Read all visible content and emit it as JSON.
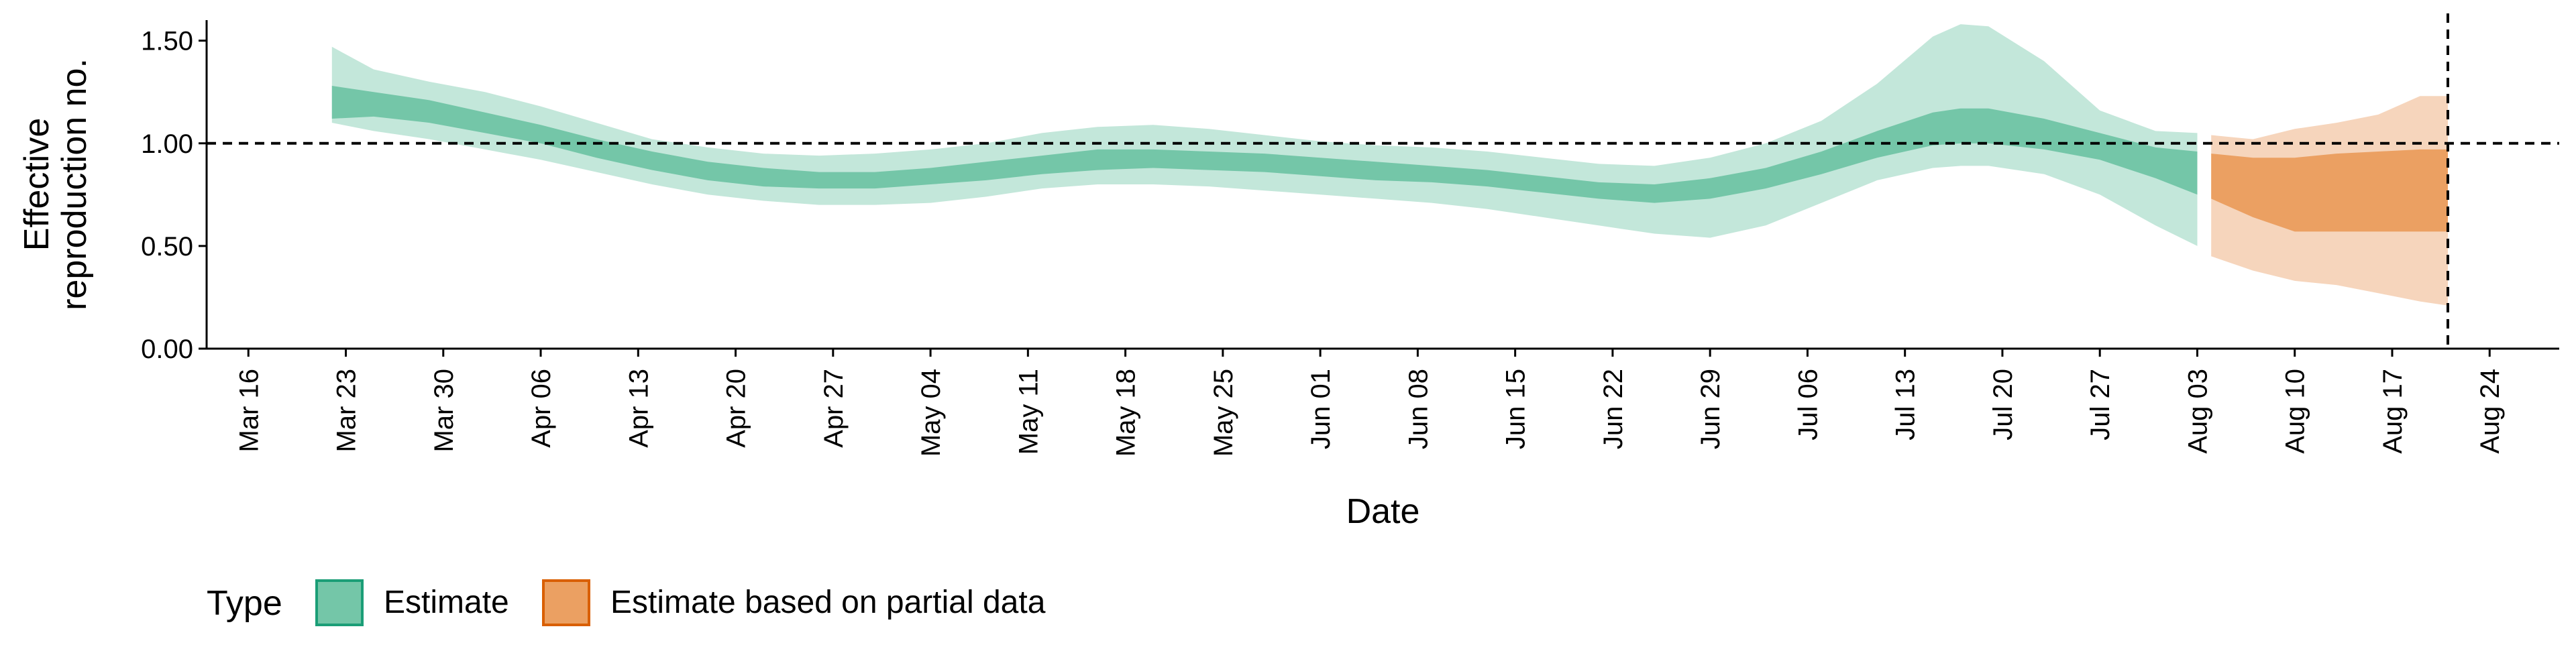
{
  "chart_data": {
    "type": "area",
    "xlabel": "Date",
    "ylabel_lines": [
      "Effective",
      "reproduction no."
    ],
    "ylim": [
      0,
      1.6
    ],
    "y_ticks": [
      0.0,
      0.5,
      1.0,
      1.5
    ],
    "y_tick_labels": [
      "0.00",
      "0.50",
      "1.00",
      "1.50"
    ],
    "x_range": [
      "2020-03-13",
      "2020-08-29"
    ],
    "x_ticks": [
      "2020-03-16",
      "2020-03-23",
      "2020-03-30",
      "2020-04-06",
      "2020-04-13",
      "2020-04-20",
      "2020-04-27",
      "2020-05-04",
      "2020-05-11",
      "2020-05-18",
      "2020-05-25",
      "2020-06-01",
      "2020-06-08",
      "2020-06-15",
      "2020-06-22",
      "2020-06-29",
      "2020-07-06",
      "2020-07-13",
      "2020-07-20",
      "2020-07-27",
      "2020-08-03",
      "2020-08-10",
      "2020-08-17",
      "2020-08-24"
    ],
    "x_tick_labels": [
      "Mar 16",
      "Mar 23",
      "Mar 30",
      "Apr 06",
      "Apr 13",
      "Apr 20",
      "Apr 27",
      "May 04",
      "May 11",
      "May 18",
      "May 25",
      "Jun 01",
      "Jun 08",
      "Jun 15",
      "Jun 22",
      "Jun 29",
      "Jul 06",
      "Jul 13",
      "Jul 20",
      "Jul 27",
      "Aug 03",
      "Aug 10",
      "Aug 17",
      "Aug 24"
    ],
    "reference_line_y": 1.0,
    "vertical_line_date": "2020-08-21",
    "grid": false,
    "legend": {
      "title": "Type",
      "position": "bottom-left",
      "entries": [
        {
          "label": "Estimate",
          "fill": "#74c6a8",
          "stroke": "#1b9e77"
        },
        {
          "label": "Estimate based on partial data",
          "fill": "#eba062",
          "stroke": "#d95f02"
        }
      ]
    },
    "series": [
      {
        "name": "Estimate",
        "inner_color": "#74c6a8",
        "outer_color": "#c3e7da",
        "points": [
          {
            "date": "2020-03-22",
            "lo90": 1.1,
            "lo50": 1.12,
            "hi50": 1.28,
            "hi90": 1.47
          },
          {
            "date": "2020-03-25",
            "lo90": 1.06,
            "lo50": 1.13,
            "hi50": 1.25,
            "hi90": 1.36
          },
          {
            "date": "2020-03-29",
            "lo90": 1.02,
            "lo50": 1.1,
            "hi50": 1.21,
            "hi90": 1.3
          },
          {
            "date": "2020-04-02",
            "lo90": 0.97,
            "lo50": 1.05,
            "hi50": 1.15,
            "hi90": 1.25
          },
          {
            "date": "2020-04-06",
            "lo90": 0.92,
            "lo50": 1.0,
            "hi50": 1.09,
            "hi90": 1.18
          },
          {
            "date": "2020-04-10",
            "lo90": 0.86,
            "lo50": 0.93,
            "hi50": 1.02,
            "hi90": 1.1
          },
          {
            "date": "2020-04-14",
            "lo90": 0.8,
            "lo50": 0.87,
            "hi50": 0.96,
            "hi90": 1.02
          },
          {
            "date": "2020-04-18",
            "lo90": 0.75,
            "lo50": 0.82,
            "hi50": 0.91,
            "hi90": 0.98
          },
          {
            "date": "2020-04-22",
            "lo90": 0.72,
            "lo50": 0.79,
            "hi50": 0.88,
            "hi90": 0.95
          },
          {
            "date": "2020-04-26",
            "lo90": 0.7,
            "lo50": 0.78,
            "hi50": 0.86,
            "hi90": 0.94
          },
          {
            "date": "2020-04-30",
            "lo90": 0.7,
            "lo50": 0.78,
            "hi50": 0.86,
            "hi90": 0.95
          },
          {
            "date": "2020-05-04",
            "lo90": 0.71,
            "lo50": 0.8,
            "hi50": 0.88,
            "hi90": 0.97
          },
          {
            "date": "2020-05-08",
            "lo90": 0.74,
            "lo50": 0.82,
            "hi50": 0.91,
            "hi90": 1.0
          },
          {
            "date": "2020-05-12",
            "lo90": 0.78,
            "lo50": 0.85,
            "hi50": 0.94,
            "hi90": 1.05
          },
          {
            "date": "2020-05-16",
            "lo90": 0.8,
            "lo50": 0.87,
            "hi50": 0.97,
            "hi90": 1.08
          },
          {
            "date": "2020-05-20",
            "lo90": 0.8,
            "lo50": 0.88,
            "hi50": 0.97,
            "hi90": 1.09
          },
          {
            "date": "2020-05-24",
            "lo90": 0.79,
            "lo50": 0.87,
            "hi50": 0.96,
            "hi90": 1.07
          },
          {
            "date": "2020-05-28",
            "lo90": 0.77,
            "lo50": 0.86,
            "hi50": 0.95,
            "hi90": 1.04
          },
          {
            "date": "2020-06-01",
            "lo90": 0.75,
            "lo50": 0.84,
            "hi50": 0.93,
            "hi90": 1.01
          },
          {
            "date": "2020-06-05",
            "lo90": 0.73,
            "lo50": 0.82,
            "hi50": 0.91,
            "hi90": 0.99
          },
          {
            "date": "2020-06-09",
            "lo90": 0.71,
            "lo50": 0.81,
            "hi50": 0.89,
            "hi90": 0.98
          },
          {
            "date": "2020-06-13",
            "lo90": 0.68,
            "lo50": 0.79,
            "hi50": 0.87,
            "hi90": 0.96
          },
          {
            "date": "2020-06-17",
            "lo90": 0.64,
            "lo50": 0.76,
            "hi50": 0.84,
            "hi90": 0.93
          },
          {
            "date": "2020-06-21",
            "lo90": 0.6,
            "lo50": 0.73,
            "hi50": 0.81,
            "hi90": 0.9
          },
          {
            "date": "2020-06-25",
            "lo90": 0.56,
            "lo50": 0.71,
            "hi50": 0.8,
            "hi90": 0.89
          },
          {
            "date": "2020-06-29",
            "lo90": 0.54,
            "lo50": 0.73,
            "hi50": 0.83,
            "hi90": 0.93
          },
          {
            "date": "2020-07-03",
            "lo90": 0.6,
            "lo50": 0.78,
            "hi50": 0.88,
            "hi90": 1.0
          },
          {
            "date": "2020-07-07",
            "lo90": 0.71,
            "lo50": 0.85,
            "hi50": 0.96,
            "hi90": 1.11
          },
          {
            "date": "2020-07-11",
            "lo90": 0.82,
            "lo50": 0.93,
            "hi50": 1.06,
            "hi90": 1.29
          },
          {
            "date": "2020-07-15",
            "lo90": 0.88,
            "lo50": 0.99,
            "hi50": 1.15,
            "hi90": 1.52
          },
          {
            "date": "2020-07-17",
            "lo90": 0.89,
            "lo50": 1.0,
            "hi50": 1.17,
            "hi90": 1.58
          },
          {
            "date": "2020-07-19",
            "lo90": 0.89,
            "lo50": 1.0,
            "hi50": 1.17,
            "hi90": 1.57
          },
          {
            "date": "2020-07-23",
            "lo90": 0.85,
            "lo50": 0.97,
            "hi50": 1.12,
            "hi90": 1.4
          },
          {
            "date": "2020-07-27",
            "lo90": 0.75,
            "lo50": 0.92,
            "hi50": 1.05,
            "hi90": 1.16
          },
          {
            "date": "2020-07-31",
            "lo90": 0.6,
            "lo50": 0.83,
            "hi50": 0.98,
            "hi90": 1.06
          },
          {
            "date": "2020-08-03",
            "lo90": 0.5,
            "lo50": 0.75,
            "hi50": 0.96,
            "hi90": 1.05
          }
        ]
      },
      {
        "name": "Estimate based on partial data",
        "inner_color": "#eba062",
        "outer_color": "#f6d5bc",
        "points": [
          {
            "date": "2020-08-04",
            "lo90": 0.45,
            "lo50": 0.73,
            "hi50": 0.95,
            "hi90": 1.04
          },
          {
            "date": "2020-08-07",
            "lo90": 0.38,
            "lo50": 0.64,
            "hi50": 0.93,
            "hi90": 1.02
          },
          {
            "date": "2020-08-10",
            "lo90": 0.33,
            "lo50": 0.57,
            "hi50": 0.93,
            "hi90": 1.07
          },
          {
            "date": "2020-08-13",
            "lo90": 0.31,
            "lo50": 0.57,
            "hi50": 0.95,
            "hi90": 1.1
          },
          {
            "date": "2020-08-16",
            "lo90": 0.27,
            "lo50": 0.57,
            "hi50": 0.96,
            "hi90": 1.14
          },
          {
            "date": "2020-08-19",
            "lo90": 0.23,
            "lo50": 0.57,
            "hi50": 0.97,
            "hi90": 1.23
          },
          {
            "date": "2020-08-21",
            "lo90": 0.21,
            "lo50": 0.57,
            "hi50": 0.97,
            "hi90": 1.23
          }
        ]
      }
    ]
  }
}
